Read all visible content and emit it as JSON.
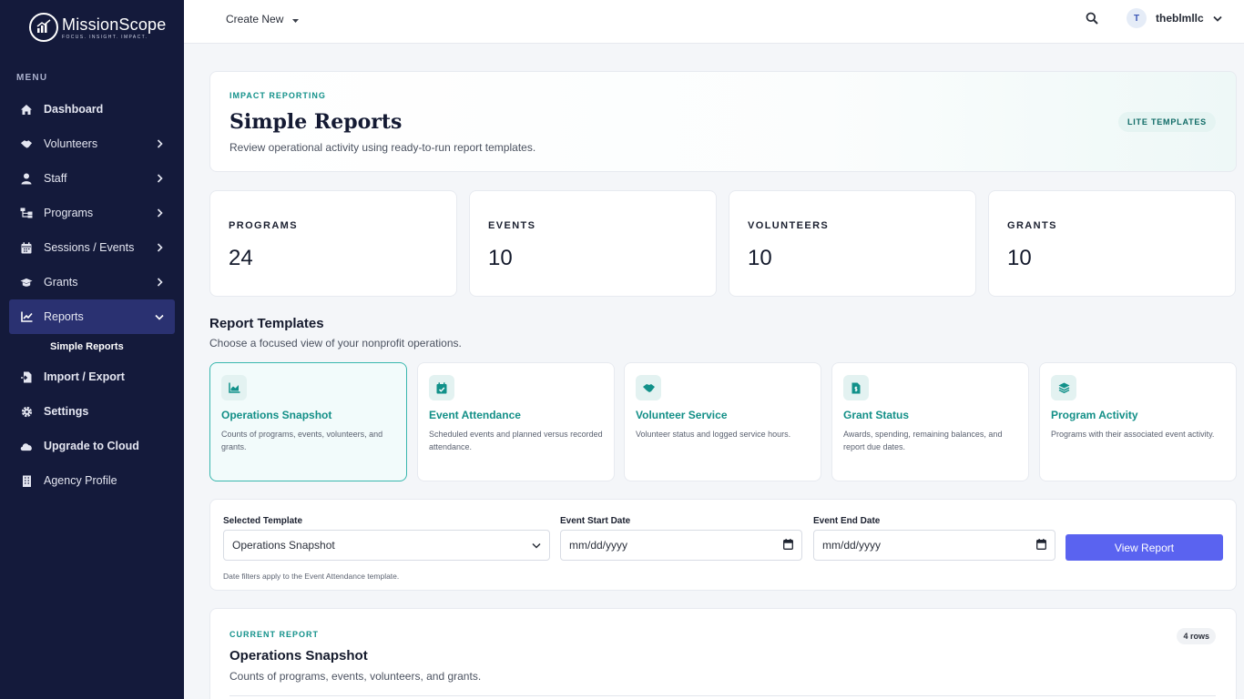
{
  "brand": {
    "name": "MissionScope",
    "tagline": "FOCUS. INSIGHT. IMPACT."
  },
  "sidebar": {
    "menu_label": "MENU",
    "items": [
      {
        "label": "Dashboard",
        "icon": "home-icon"
      },
      {
        "label": "Volunteers",
        "icon": "handshake-icon"
      },
      {
        "label": "Staff",
        "icon": "user-icon"
      },
      {
        "label": "Programs",
        "icon": "sitemap-icon"
      },
      {
        "label": "Sessions / Events",
        "icon": "calendar-icon"
      },
      {
        "label": "Grants",
        "icon": "graduation-cap-icon"
      },
      {
        "label": "Reports",
        "icon": "chart-line-icon"
      },
      {
        "label": "Simple Reports"
      },
      {
        "label": "Import / Export",
        "icon": "file-import-icon"
      },
      {
        "label": "Settings",
        "icon": "gear-icon"
      },
      {
        "label": "Upgrade to Cloud",
        "icon": "cloud-icon"
      },
      {
        "label": "Agency Profile",
        "icon": "building-icon"
      }
    ]
  },
  "topbar": {
    "create_new": "Create New",
    "avatar_initial": "T",
    "username": "theblmllc"
  },
  "header": {
    "eyebrow": "IMPACT REPORTING",
    "title": "Simple Reports",
    "subtitle": "Review operational activity using ready-to-run report templates.",
    "badge": "LITE TEMPLATES"
  },
  "stats": [
    {
      "label": "PROGRAMS",
      "value": "24"
    },
    {
      "label": "EVENTS",
      "value": "10"
    },
    {
      "label": "VOLUNTEERS",
      "value": "10"
    },
    {
      "label": "GRANTS",
      "value": "10"
    }
  ],
  "templates_section": {
    "title": "Report Templates",
    "subtitle": "Choose a focused view of your nonprofit operations.",
    "items": [
      {
        "title": "Operations Snapshot",
        "desc": "Counts of programs, events, volunteers, and grants.",
        "icon": "chart-area-icon"
      },
      {
        "title": "Event Attendance",
        "desc": "Scheduled events and planned versus recorded attendance.",
        "icon": "calendar-check-icon"
      },
      {
        "title": "Volunteer Service",
        "desc": "Volunteer status and logged service hours.",
        "icon": "handshake-icon"
      },
      {
        "title": "Grant Status",
        "desc": "Awards, spending, remaining balances, and report due dates.",
        "icon": "file-invoice-dollar-icon"
      },
      {
        "title": "Program Activity",
        "desc": "Programs with their associated event activity.",
        "icon": "layer-group-icon"
      }
    ]
  },
  "filters": {
    "template_label": "Selected Template",
    "template_value": "Operations Snapshot",
    "start_label": "Event Start Date",
    "start_placeholder": "mm/dd/yyyy",
    "end_label": "Event End Date",
    "end_placeholder": "mm/dd/yyyy",
    "button": "View Report",
    "note": "Date filters apply to the Event Attendance template."
  },
  "current_report": {
    "eyebrow": "CURRENT REPORT",
    "title": "Operations Snapshot",
    "subtitle": "Counts of programs, events, volunteers, and grants.",
    "rows_badge": "4 rows"
  },
  "colors": {
    "sidebar": "#141a3b",
    "sidebar_active": "#2a3171",
    "accent": "#12918a",
    "button": "#5a63f0"
  }
}
